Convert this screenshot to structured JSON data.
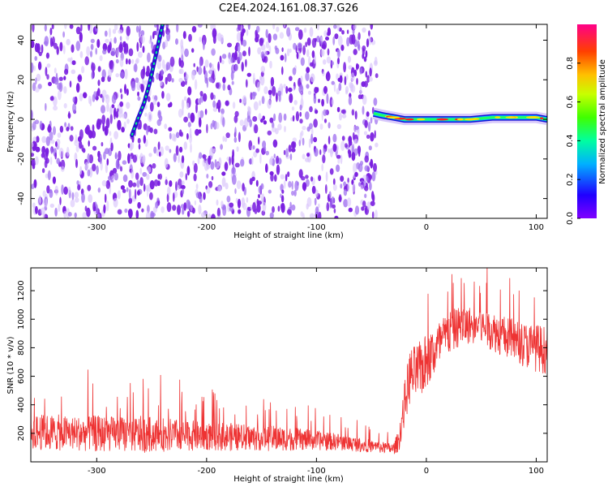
{
  "title": "C2E4.2024.161.08.37.G26",
  "chart_data": [
    {
      "type": "heatmap",
      "panel": "top",
      "xlabel": "Height of straight line (km)",
      "ylabel": "Frequency (Hz)",
      "xlim": [
        -360,
        110
      ],
      "ylim": [
        -50,
        48
      ],
      "xticks": [
        -300,
        -200,
        -100,
        0,
        100
      ],
      "yticks": [
        -40,
        -20,
        0,
        20,
        40
      ],
      "colorbar": {
        "label": "Normalized spectral amplitude",
        "range": [
          0.0,
          1.0
        ],
        "ticks": [
          0.0,
          0.2,
          0.4,
          0.6,
          0.8
        ],
        "colormap": [
          "#7f00ff",
          "#0000ff",
          "#00c8ff",
          "#00ff80",
          "#40ff00",
          "#c8ff00",
          "#ffc800",
          "#ff6400",
          "#ff0040",
          "#ff0080"
        ]
      },
      "noise_region": {
        "x_range": [
          -360,
          -45
        ],
        "typical_amplitude": 0.15,
        "color": "#8a2be2"
      },
      "features": [
        {
          "name": "trace",
          "x": [
            -268,
            -262,
            -257,
            -252,
            -248,
            -244,
            -240
          ],
          "y": [
            -8,
            1,
            8,
            18,
            28,
            38,
            48
          ],
          "amplitude": 0.35
        },
        {
          "name": "carrier",
          "x": [
            -48,
            -40,
            -30,
            -20,
            0,
            20,
            40,
            60,
            80,
            100,
            110
          ],
          "y": [
            3,
            2,
            1,
            0,
            0,
            0,
            0,
            1,
            1,
            1,
            0
          ],
          "amplitude": 0.75
        }
      ]
    },
    {
      "type": "line",
      "panel": "bottom",
      "xlabel": "Height of straight line (km)",
      "ylabel": "SNR (10 * v/v)",
      "xlim": [
        -360,
        110
      ],
      "ylim": [
        0,
        1360
      ],
      "xticks": [
        -300,
        -200,
        -100,
        0,
        100
      ],
      "yticks": [
        200,
        400,
        600,
        800,
        1000,
        1200
      ],
      "color": "#ee3333",
      "x": [
        -360,
        -340,
        -320,
        -300,
        -280,
        -260,
        -240,
        -220,
        -200,
        -180,
        -160,
        -140,
        -120,
        -100,
        -80,
        -60,
        -40,
        -30,
        -25,
        -20,
        -15,
        -10,
        -5,
        0,
        10,
        20,
        30,
        40,
        50,
        60,
        70,
        80,
        90,
        100,
        110
      ],
      "y_mean": [
        210,
        205,
        200,
        198,
        195,
        192,
        190,
        185,
        180,
        175,
        170,
        165,
        160,
        150,
        140,
        120,
        100,
        90,
        150,
        400,
        600,
        620,
        650,
        700,
        800,
        900,
        950,
        960,
        950,
        920,
        880,
        850,
        820,
        800,
        780
      ],
      "y_spread": [
        120,
        130,
        120,
        130,
        120,
        130,
        120,
        110,
        100,
        100,
        90,
        90,
        80,
        70,
        60,
        50,
        40,
        40,
        80,
        150,
        200,
        200,
        200,
        200,
        180,
        160,
        140,
        130,
        130,
        140,
        150,
        150,
        160,
        170,
        170
      ]
    }
  ]
}
